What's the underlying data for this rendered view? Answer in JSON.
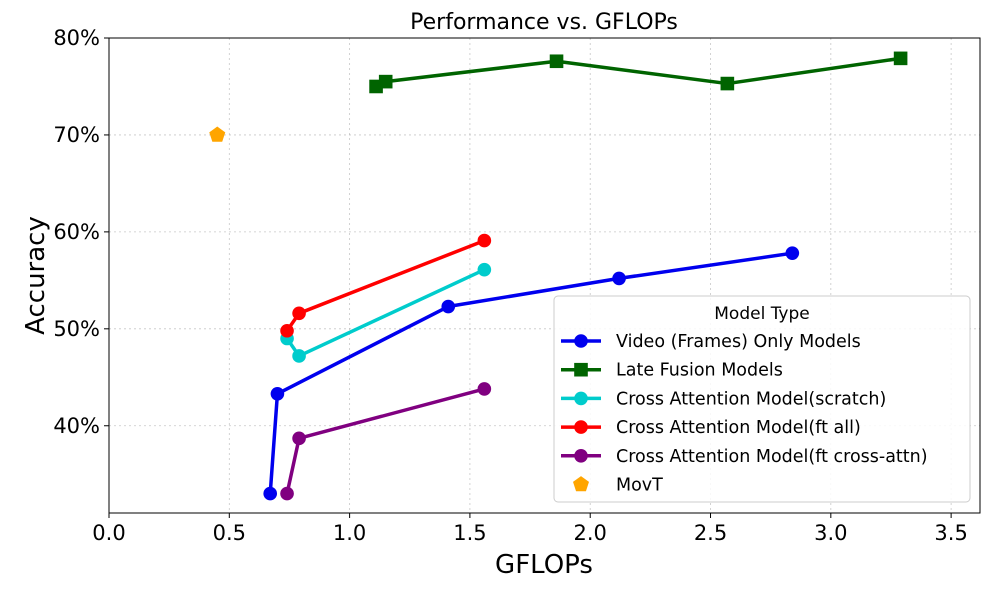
{
  "chart_data": {
    "type": "line",
    "title": "Performance vs. GFLOPs",
    "xlabel": "GFLOPs",
    "ylabel": "Accuracy",
    "xlim": [
      0.0,
      3.62
    ],
    "ylim": [
      31,
      80
    ],
    "xticks": [
      {
        "value": 0.0,
        "label": "0.0"
      },
      {
        "value": 0.5,
        "label": "0.5"
      },
      {
        "value": 1.0,
        "label": "1.0"
      },
      {
        "value": 1.5,
        "label": "1.5"
      },
      {
        "value": 2.0,
        "label": "2.0"
      },
      {
        "value": 2.5,
        "label": "2.5"
      },
      {
        "value": 3.0,
        "label": "3.0"
      },
      {
        "value": 3.5,
        "label": "3.5"
      }
    ],
    "yticks": [
      {
        "value": 40,
        "label": "40%"
      },
      {
        "value": 50,
        "label": "50%"
      },
      {
        "value": 60,
        "label": "60%"
      },
      {
        "value": 70,
        "label": "70%"
      },
      {
        "value": 80,
        "label": "80%"
      }
    ],
    "grid": true,
    "legend": {
      "title": "Model Type",
      "placement": "lower-right"
    },
    "series": [
      {
        "name": "Video (Frames) Only Models",
        "color": "#0000ee",
        "marker": "circle",
        "line": true,
        "x": [
          0.67,
          0.7,
          1.41,
          2.12,
          2.84
        ],
        "y": [
          33.0,
          43.3,
          52.3,
          55.2,
          57.8
        ]
      },
      {
        "name": "Late Fusion Models",
        "color": "#006400",
        "marker": "square",
        "line": true,
        "x": [
          1.11,
          1.15,
          1.86,
          2.57,
          3.29
        ],
        "y": [
          75.0,
          75.5,
          77.6,
          75.3,
          77.9
        ]
      },
      {
        "name": "Cross Attention Model(scratch)",
        "color": "#00cccc",
        "marker": "circle",
        "line": true,
        "x": [
          0.74,
          0.79,
          1.56
        ],
        "y": [
          49.0,
          47.2,
          56.1
        ]
      },
      {
        "name": "Cross Attention Model(ft all)",
        "color": "#ff0000",
        "marker": "circle",
        "line": true,
        "x": [
          0.74,
          0.79,
          1.56
        ],
        "y": [
          49.8,
          51.6,
          59.1
        ]
      },
      {
        "name": "Cross Attention Model(ft cross-attn)",
        "color": "#800080",
        "marker": "circle",
        "line": true,
        "x": [
          0.74,
          0.79,
          1.56
        ],
        "y": [
          33.0,
          38.7,
          43.8
        ]
      },
      {
        "name": "MovT",
        "color": "#ffa500",
        "marker": "pentagon",
        "line": false,
        "x": [
          0.45
        ],
        "y": [
          70.0
        ]
      }
    ]
  }
}
